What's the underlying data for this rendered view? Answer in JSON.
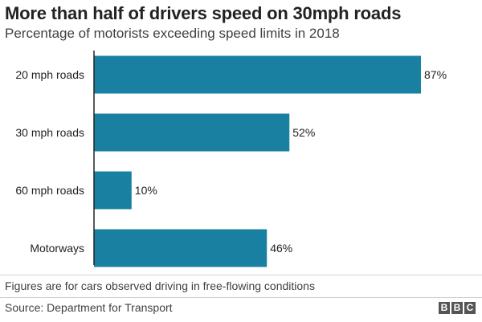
{
  "title": "More than half of drivers speed on 30mph roads",
  "subtitle": "Percentage of motorists exceeding speed limits in 2018",
  "footnote": "Figures are for cars observed driving in free-flowing conditions",
  "source": "Source: Department for Transport",
  "logo": [
    "B",
    "B",
    "C"
  ],
  "colors": {
    "bar": "#1a80a2",
    "axis": "#222222",
    "rule": "#d0d0d0"
  },
  "chart_data": {
    "type": "bar",
    "orientation": "horizontal",
    "categories": [
      "20 mph roads",
      "30 mph roads",
      "60 mph roads",
      "Motorways"
    ],
    "values": [
      87,
      52,
      10,
      46
    ],
    "data_labels": [
      "87%",
      "52%",
      "10%",
      "46%"
    ],
    "xlim": [
      0,
      100
    ],
    "grid": false
  }
}
